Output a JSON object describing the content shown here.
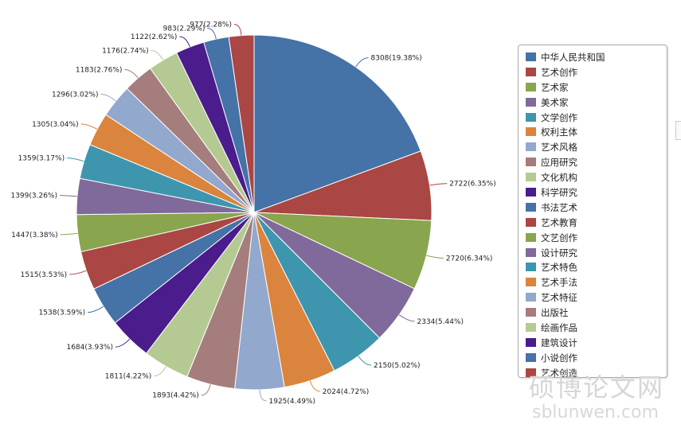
{
  "chart_data": {
    "type": "pie",
    "categories": [
      "中华人民共和国",
      "艺术创作",
      "艺术家",
      "美术家",
      "文学创作",
      "权利主体",
      "艺术风格",
      "应用研究",
      "文化机构",
      "科学研究",
      "书法艺术",
      "艺术教育",
      "文艺创作",
      "设计研究",
      "艺术特色",
      "艺术手法",
      "艺术特征",
      "出版社",
      "绘画作品",
      "建筑设计",
      "小说创作",
      "艺术创造"
    ],
    "values": [
      8308,
      2722,
      2720,
      2334,
      2150,
      2024,
      1925,
      1893,
      1811,
      1684,
      1538,
      1515,
      1447,
      1399,
      1359,
      1305,
      1296,
      1183,
      1176,
      1122,
      983,
      977
    ],
    "data_labels": [
      "8308(19.38%)",
      "2722(6.35%)",
      "2720(6.34%)",
      "2334(5.44%)",
      "2150(5.02%)",
      "2024(4.72%)",
      "1925(4.49%)",
      "1893(4.42%)",
      "1811(4.22%)",
      "1684(3.93%)",
      "1538(3.59%)",
      "1515(3.53%)",
      "1447(3.38%)",
      "1399(3.26%)",
      "1359(3.17%)",
      "1305(3.04%)",
      "1296(3.02%)",
      "1183(2.76%)",
      "1176(2.74%)",
      "1122(2.62%)",
      "983(2.29%)",
      "977(2.28%)"
    ],
    "colors": [
      "#4572a7",
      "#aa4643",
      "#89a54e",
      "#80699b",
      "#3d96ae",
      "#db843d",
      "#92a8cd",
      "#a47d7c",
      "#b5ca92",
      "#4a1c8c",
      "#4572a7",
      "#aa4643",
      "#89a54e",
      "#80699b",
      "#3d96ae",
      "#db843d",
      "#92a8cd",
      "#a47d7c",
      "#b5ca92",
      "#4a1c8c",
      "#4572a7",
      "#aa4643"
    ],
    "legend_position": "right"
  },
  "legend": {
    "items": [
      "中华人民共和国",
      "艺术创作",
      "艺术家",
      "美术家",
      "文学创作",
      "权利主体",
      "艺术风格",
      "应用研究",
      "文化机构",
      "科学研究",
      "书法艺术",
      "艺术教育",
      "文艺创作",
      "设计研究",
      "艺术特色",
      "艺术手法",
      "艺术特征",
      "出版社",
      "绘画作品",
      "建筑设计",
      "小说创作",
      "艺术创造"
    ]
  },
  "watermark": {
    "chinese": "硕博论文网",
    "url": "sblunwen.com"
  }
}
